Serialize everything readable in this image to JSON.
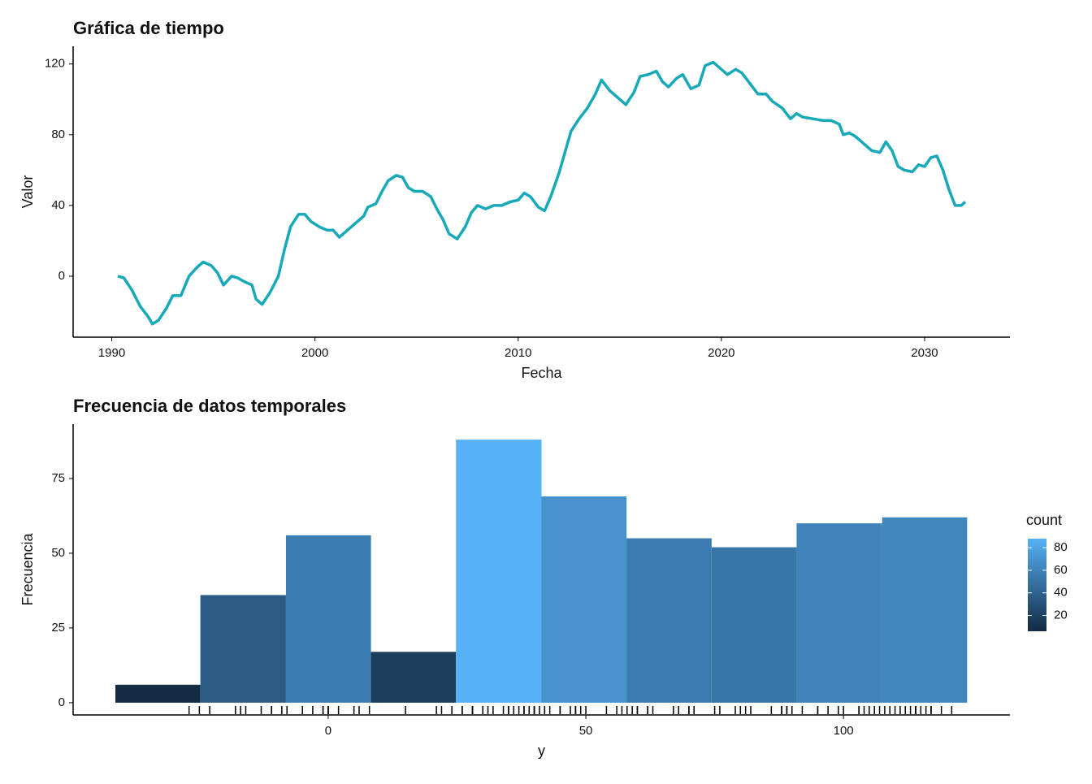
{
  "chart_data": [
    {
      "type": "line",
      "title": "Gráfica de tiempo",
      "xlabel": "Fecha",
      "ylabel": "Valor",
      "x": [
        1990.3,
        1990.6,
        1991.0,
        1991.4,
        1991.8,
        1992.0,
        1992.3,
        1992.7,
        1993.0,
        1993.4,
        1993.8,
        1994.2,
        1994.5,
        1994.9,
        1995.2,
        1995.5,
        1995.9,
        1996.2,
        1996.5,
        1996.9,
        1997.1,
        1997.4,
        1997.8,
        1998.2,
        1998.5,
        1998.8,
        1999.2,
        1999.5,
        1999.8,
        2000.2,
        2000.6,
        2000.9,
        2001.2,
        2001.6,
        2002.0,
        2002.4,
        2002.6,
        2003.0,
        2003.3,
        2003.6,
        2004.0,
        2004.3,
        2004.6,
        2004.9,
        2005.3,
        2005.7,
        2006.0,
        2006.3,
        2006.6,
        2007.0,
        2007.4,
        2007.7,
        2008.0,
        2008.4,
        2008.8,
        2009.2,
        2009.6,
        2010.0,
        2010.3,
        2010.6,
        2011.0,
        2011.3,
        2011.6,
        2012.0,
        2012.3,
        2012.6,
        2013.0,
        2013.4,
        2013.8,
        2014.1,
        2014.5,
        2015.0,
        2015.3,
        2015.7,
        2016.0,
        2016.4,
        2016.8,
        2017.1,
        2017.4,
        2017.8,
        2018.1,
        2018.5,
        2018.9,
        2019.2,
        2019.6,
        2020.0,
        2020.3,
        2020.7,
        2021.0,
        2021.4,
        2021.8,
        2022.2,
        2022.5,
        2023.0,
        2023.4,
        2023.7,
        2024.0,
        2024.5,
        2025.0,
        2025.4,
        2025.8,
        2026.0,
        2026.3,
        2026.6,
        2027.0,
        2027.4,
        2027.8,
        2028.1,
        2028.4,
        2028.7,
        2029.0,
        2029.4,
        2029.7,
        2030.0,
        2030.3,
        2030.6,
        2030.9,
        2031.2,
        2031.5,
        2031.8,
        2032.0
      ],
      "series": [
        {
          "color": "#17a9b8",
          "values": [
            0,
            -1,
            -8,
            -17,
            -23,
            -27,
            -25,
            -18,
            -11,
            -11,
            0,
            5,
            8,
            6,
            2,
            -5,
            0,
            -1,
            -3,
            -5,
            -13,
            -16,
            -9,
            0,
            15,
            28,
            35,
            35,
            31,
            28,
            26,
            26,
            22,
            26,
            30,
            34,
            39,
            41,
            48,
            54,
            57,
            56,
            50,
            48,
            48,
            45,
            38,
            32,
            24,
            21,
            28,
            36,
            40,
            38,
            40,
            40,
            42,
            43,
            47,
            45,
            39,
            37,
            45,
            58,
            70,
            82,
            89,
            95,
            103,
            111,
            105,
            100,
            97,
            104,
            113,
            114,
            116,
            110,
            107,
            112,
            114,
            106,
            108,
            119,
            121,
            117,
            114,
            117,
            115,
            109,
            103,
            103,
            99,
            95,
            89,
            92,
            90,
            89,
            88,
            88,
            86,
            80,
            81,
            79,
            75,
            71,
            70,
            76,
            71,
            62,
            60,
            59,
            63,
            62,
            67,
            68,
            60,
            49,
            40,
            40,
            42
          ]
        }
      ],
      "xlim": [
        1988.1,
        2034.2
      ],
      "xticks": [
        1990,
        2000,
        2010,
        2020,
        2030
      ],
      "ylim": [
        -34.5,
        130
      ],
      "yticks": [
        0,
        40,
        80,
        120
      ]
    },
    {
      "type": "histogram",
      "title": "Frecuencia de datos temporales",
      "xlabel": "y",
      "ylabel": "Frecuencia",
      "bins": [
        -41.3,
        -24.8,
        -8.2,
        8.3,
        24.8,
        41.4,
        57.9,
        74.4,
        90.9,
        107.5,
        124.0
      ],
      "values": [
        6,
        36,
        56,
        17,
        88,
        69,
        55,
        52,
        60,
        62
      ],
      "xlim": [
        -49.5,
        132.3
      ],
      "xticks": [
        0,
        50,
        100
      ],
      "ylim": [
        -4.1,
        93.2
      ],
      "yticks": [
        0,
        25,
        50,
        75
      ],
      "rug": true,
      "colorbar": {
        "title": "count",
        "ticks": [
          20,
          40,
          60,
          80
        ],
        "low": "#132B43",
        "high": "#56B1F7"
      }
    }
  ]
}
